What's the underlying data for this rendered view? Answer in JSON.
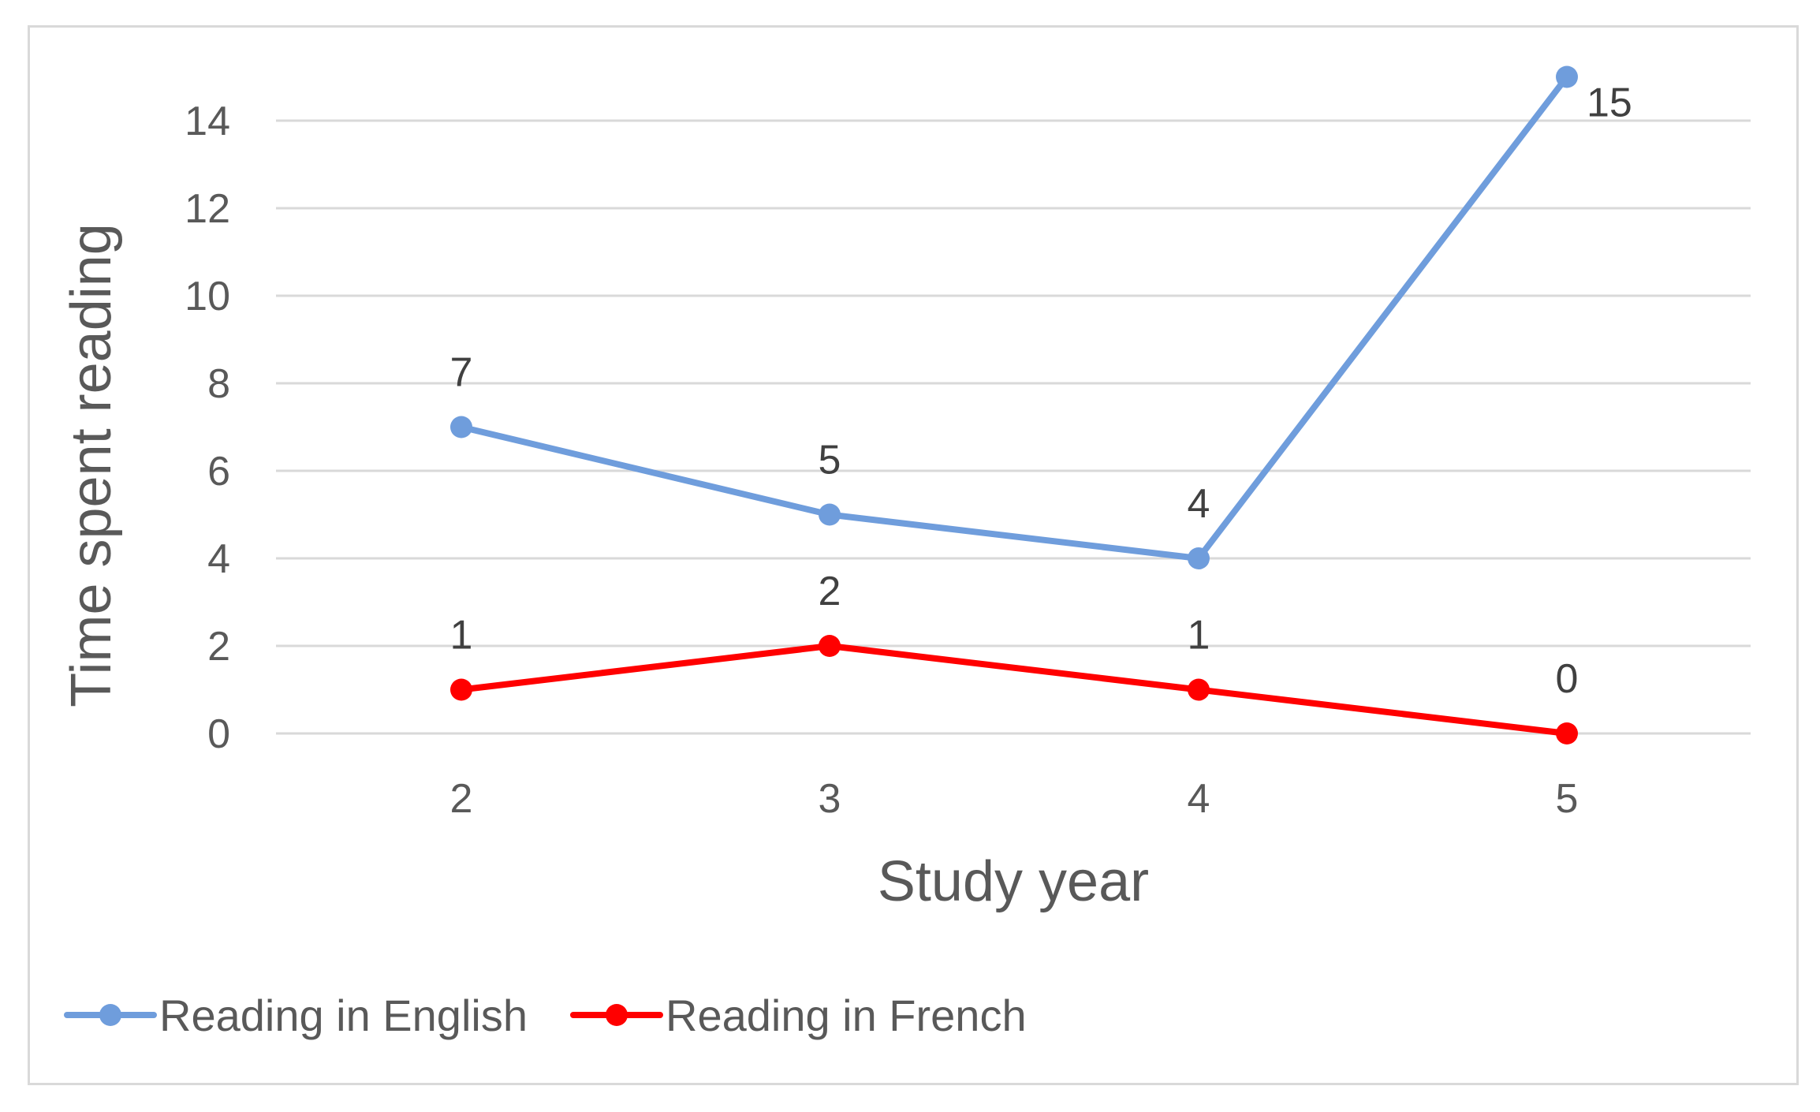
{
  "chart_data": {
    "type": "line",
    "title": "",
    "xlabel": "Study year",
    "ylabel": "Time spent reading",
    "categories": [
      "2",
      "3",
      "4",
      "5"
    ],
    "ylim": [
      0,
      14
    ],
    "yticks": [
      0,
      2,
      4,
      6,
      8,
      10,
      12,
      14
    ],
    "grid": "horizontal",
    "legend_position": "bottom-left",
    "series": [
      {
        "name": "Reading in English",
        "values": [
          7,
          5,
          4,
          15
        ],
        "color": "#6f9ddc"
      },
      {
        "name": "Reading in French",
        "values": [
          1,
          2,
          1,
          0
        ],
        "color": "#ff0000"
      }
    ]
  }
}
